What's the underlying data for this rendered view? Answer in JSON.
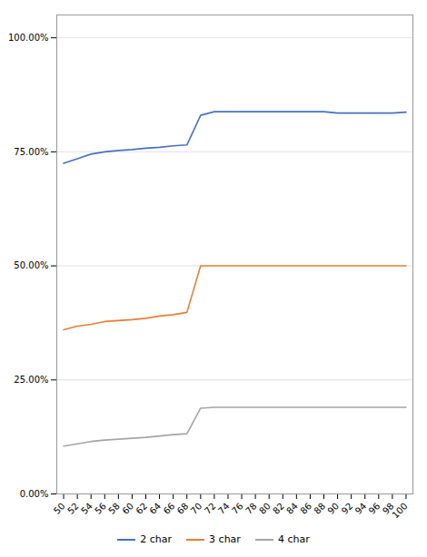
{
  "chart_data": {
    "type": "line",
    "x": [
      50,
      52,
      54,
      56,
      58,
      60,
      62,
      64,
      66,
      68,
      70,
      72,
      74,
      76,
      78,
      80,
      82,
      84,
      86,
      88,
      90,
      92,
      94,
      96,
      98,
      100
    ],
    "series": [
      {
        "name": "2 char",
        "color": "#4472C4",
        "values": [
          0.725,
          0.735,
          0.745,
          0.75,
          0.753,
          0.755,
          0.758,
          0.76,
          0.763,
          0.765,
          0.83,
          0.838,
          0.838,
          0.838,
          0.838,
          0.838,
          0.838,
          0.838,
          0.838,
          0.838,
          0.835,
          0.835,
          0.835,
          0.835,
          0.835,
          0.837
        ]
      },
      {
        "name": "3 char",
        "color": "#ED7D31",
        "values": [
          0.36,
          0.368,
          0.372,
          0.378,
          0.38,
          0.382,
          0.385,
          0.39,
          0.393,
          0.398,
          0.5,
          0.5,
          0.5,
          0.5,
          0.5,
          0.5,
          0.5,
          0.5,
          0.5,
          0.5,
          0.5,
          0.5,
          0.5,
          0.5,
          0.5,
          0.5
        ]
      },
      {
        "name": "4 char",
        "color": "#A5A5A5",
        "values": [
          0.105,
          0.11,
          0.115,
          0.118,
          0.12,
          0.122,
          0.124,
          0.127,
          0.13,
          0.132,
          0.188,
          0.19,
          0.19,
          0.19,
          0.19,
          0.19,
          0.19,
          0.19,
          0.19,
          0.19,
          0.19,
          0.19,
          0.19,
          0.19,
          0.19,
          0.19
        ]
      }
    ],
    "xlim": [
      49,
      101
    ],
    "xticks": [
      50,
      52,
      54,
      56,
      58,
      60,
      62,
      64,
      66,
      68,
      70,
      72,
      74,
      76,
      78,
      80,
      82,
      84,
      86,
      88,
      90,
      92,
      94,
      96,
      98,
      100
    ],
    "ylim": [
      0.0,
      1.05
    ],
    "yticks": [
      {
        "value": 0.0,
        "label": "0.00%"
      },
      {
        "value": 0.25,
        "label": "25.00%"
      },
      {
        "value": 0.5,
        "label": "50.00%"
      },
      {
        "value": 0.75,
        "label": "75.00%"
      },
      {
        "value": 1.0,
        "label": "100.00%"
      }
    ],
    "grid": true,
    "legend": "bottom"
  }
}
